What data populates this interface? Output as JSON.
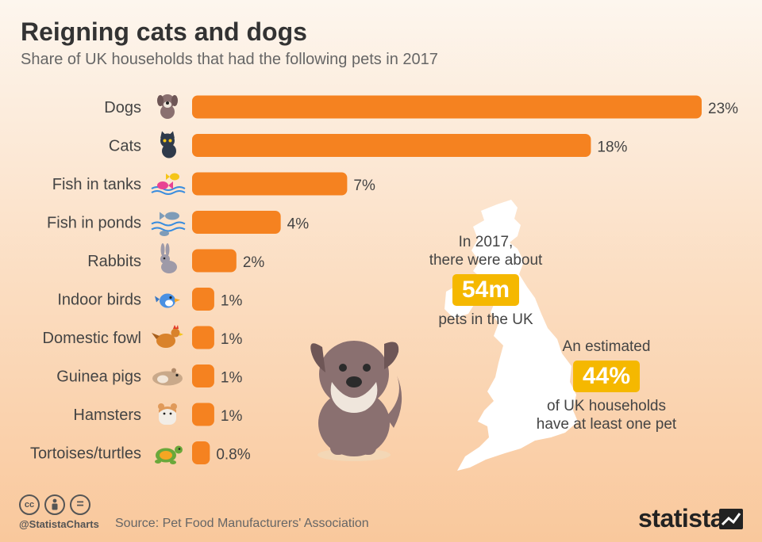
{
  "title": "Reigning cats and dogs",
  "subtitle": "Share of UK households that had the following pets in 2017",
  "chart_data": {
    "type": "bar",
    "orientation": "horizontal",
    "categories": [
      "Dogs",
      "Cats",
      "Fish in tanks",
      "Fish in ponds",
      "Rabbits",
      "Indoor birds",
      "Domestic fowl",
      "Guinea pigs",
      "Hamsters",
      "Tortoises/turtles"
    ],
    "values": [
      23,
      18,
      7,
      4,
      2,
      1,
      1,
      1,
      1,
      0.8
    ],
    "value_labels": [
      "23%",
      "18%",
      "7%",
      "4%",
      "2%",
      "1%",
      "1%",
      "1%",
      "1%",
      "0.8%"
    ],
    "icons": [
      "dog-icon",
      "cat-icon",
      "tank-fish-icon",
      "pond-fish-icon",
      "rabbit-icon",
      "bird-icon",
      "hen-icon",
      "guinea-pig-icon",
      "hamster-icon",
      "turtle-icon"
    ],
    "xlim": [
      0,
      23
    ],
    "bar_color": "#f58220",
    "grid": false
  },
  "callout_pets": {
    "line1": "In 2017,",
    "line2": "there were about",
    "value": "54m",
    "line3": "pets in the UK"
  },
  "callout_households": {
    "line1": "An estimated",
    "value": "44%",
    "line2": "of UK households",
    "line3": "have at least one pet"
  },
  "footer": {
    "license_icons": [
      "cc",
      "by",
      "="
    ],
    "handle": "@StatistaCharts",
    "source": "Source: Pet Food Manufacturers' Association",
    "brand": "statista"
  },
  "colors": {
    "accent": "#f58220",
    "highlight": "#f5b800",
    "text": "#333333"
  }
}
